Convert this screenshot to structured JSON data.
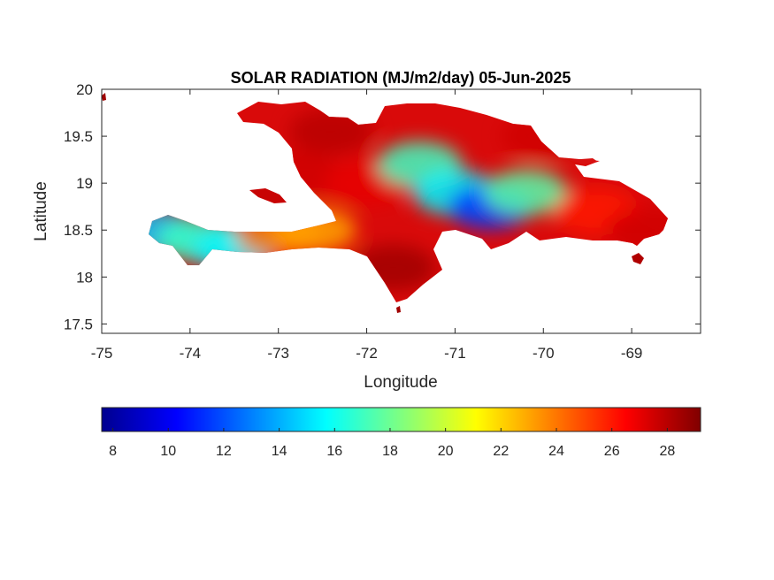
{
  "chart_data": {
    "type": "heatmap",
    "title": "SOLAR RADIATION (MJ/m2/day) 05-Jun-2025",
    "xlabel": "Longitude",
    "ylabel": "Latitude",
    "xlim": [
      -75,
      -68.22
    ],
    "ylim": [
      17.4,
      20
    ],
    "x_ticks": [
      -75,
      -74,
      -73,
      -72,
      -71,
      -70,
      -69
    ],
    "x_tick_labels": [
      "-75",
      "-74",
      "-73",
      "-72",
      "-71",
      "-70",
      "-69"
    ],
    "y_ticks": [
      17.5,
      18,
      18.5,
      19,
      19.5,
      20
    ],
    "y_tick_labels": [
      "17.5",
      "18",
      "18.5",
      "19",
      "19.5",
      "20"
    ],
    "grid": false,
    "colormap": "jet",
    "colorbar": {
      "orientation": "horizontal",
      "placement": "below",
      "range": [
        7.6,
        29.2
      ],
      "ticks": [
        8,
        10,
        12,
        14,
        16,
        18,
        20,
        22,
        24,
        26,
        28
      ],
      "tick_labels": [
        "8",
        "10",
        "12",
        "14",
        "16",
        "18",
        "20",
        "22",
        "24",
        "26",
        "28"
      ]
    },
    "regions": [
      {
        "lon": -74.4,
        "lat": 18.48,
        "value": 14.5
      },
      {
        "lon": -73.9,
        "lat": 18.4,
        "value": 17.0
      },
      {
        "lon": -73.5,
        "lat": 18.3,
        "value": 15.5
      },
      {
        "lon": -73.0,
        "lat": 18.45,
        "value": 24.0
      },
      {
        "lon": -72.6,
        "lat": 18.5,
        "value": 23.0
      },
      {
        "lon": -72.8,
        "lat": 19.1,
        "value": 27.5
      },
      {
        "lon": -72.4,
        "lat": 19.55,
        "value": 28.0
      },
      {
        "lon": -72.0,
        "lat": 19.0,
        "value": 27.0
      },
      {
        "lon": -71.4,
        "lat": 19.2,
        "value": 17.0
      },
      {
        "lon": -71.0,
        "lat": 18.9,
        "value": 15.5
      },
      {
        "lon": -70.6,
        "lat": 18.75,
        "value": 11.5
      },
      {
        "lon": -70.2,
        "lat": 18.9,
        "value": 17.5
      },
      {
        "lon": -71.7,
        "lat": 18.1,
        "value": 28.5
      },
      {
        "lon": -70.0,
        "lat": 19.5,
        "value": 27.5
      },
      {
        "lon": -69.4,
        "lat": 18.7,
        "value": 26.0
      },
      {
        "lon": -68.8,
        "lat": 18.5,
        "value": 27.5
      }
    ],
    "colors": {
      "axes": "#262626",
      "background": "#ffffff"
    }
  }
}
